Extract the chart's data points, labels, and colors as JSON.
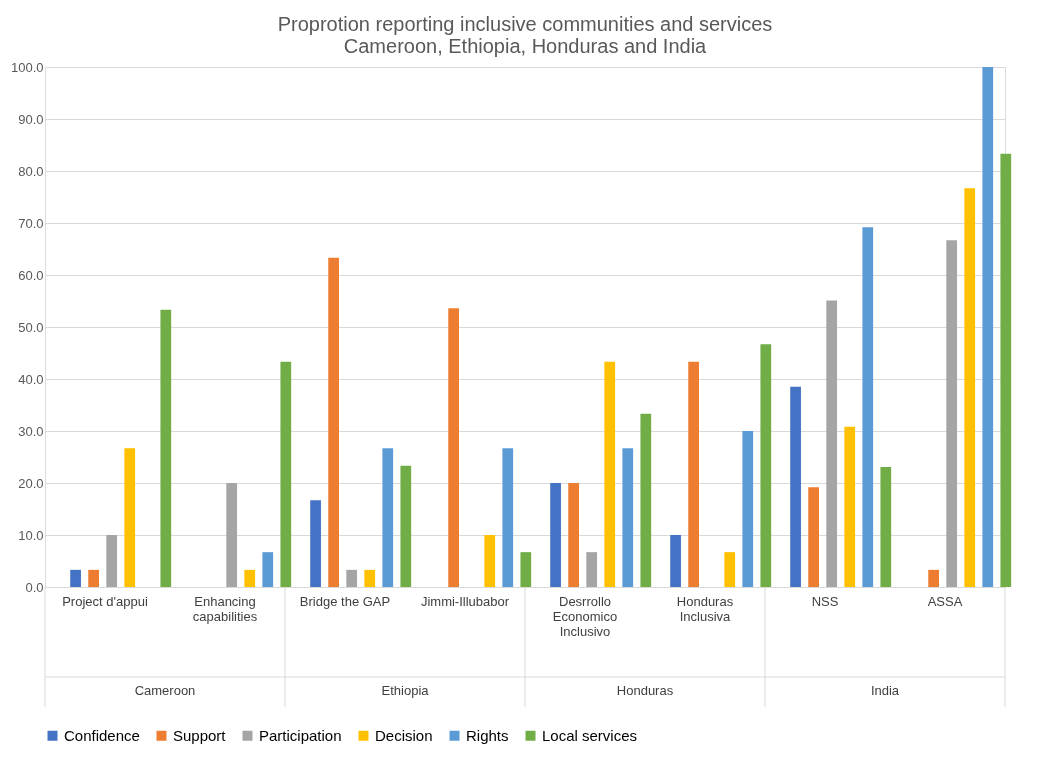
{
  "chart_data": {
    "type": "bar",
    "title": [
      "Proprotion reporting inclusive communities and services",
      "Cameroon, Ethiopia, Honduras and India"
    ],
    "categories": [
      "Project d'appui",
      "Enhancing capabilities",
      "Bridge the GAP",
      "Jimmi-Illubabor",
      "Desrrollo Economico Inclusivo",
      "Honduras Inclusiva",
      "NSS",
      "ASSA"
    ],
    "annotations": [
      "Cameroon",
      "Ethiopia",
      "Honduras",
      "India"
    ],
    "series": [
      {
        "name": "Confidence",
        "color": "#4472c4",
        "values": [
          3.3,
          0,
          16.7,
          0,
          20.0,
          10.0,
          38.5,
          0
        ]
      },
      {
        "name": "Support",
        "color": "#ed7d31",
        "values": [
          3.3,
          0,
          63.3,
          53.6,
          20.0,
          43.3,
          19.2,
          3.3
        ]
      },
      {
        "name": "Participation",
        "color": "#a5a5a5",
        "values": [
          10.0,
          20.0,
          3.3,
          0,
          6.7,
          0,
          55.1,
          66.7
        ]
      },
      {
        "name": "Decision",
        "color": "#ffc000",
        "values": [
          26.7,
          3.3,
          3.3,
          10.0,
          43.3,
          6.7,
          30.8,
          76.7
        ]
      },
      {
        "name": "Rights",
        "color": "#5b9bd5",
        "values": [
          0,
          6.7,
          26.7,
          26.7,
          26.7,
          30.0,
          69.2,
          100.0
        ]
      },
      {
        "name": "Local services",
        "color": "#70ad47",
        "values": [
          53.3,
          43.3,
          23.3,
          6.7,
          33.3,
          46.7,
          23.1,
          83.3
        ]
      }
    ],
    "ylim": [
      0,
      100
    ],
    "yticks": [
      {
        "value": 0,
        "label": "0.0"
      },
      {
        "value": 10,
        "label": "10.0"
      },
      {
        "value": 20,
        "label": "20.0"
      },
      {
        "value": 30,
        "label": "30.0"
      },
      {
        "value": 40,
        "label": "40.0"
      },
      {
        "value": 50,
        "label": "50.0"
      },
      {
        "value": 60,
        "label": "60.0"
      },
      {
        "value": 70,
        "label": "70.0"
      },
      {
        "value": 80,
        "label": "80.0"
      },
      {
        "value": 90,
        "label": "90.0"
      },
      {
        "value": 100,
        "label": "100.0"
      }
    ],
    "grid": "y",
    "legend": "bottom"
  }
}
